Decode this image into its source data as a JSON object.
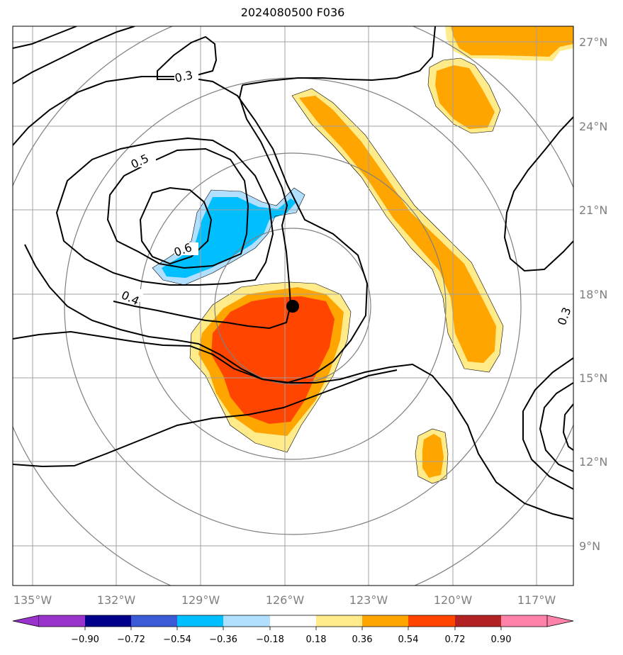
{
  "title": "2024080500 F036",
  "chart_data": {
    "type": "map",
    "lon_ticks": [
      "135°W",
      "132°W",
      "129°W",
      "126°W",
      "123°W",
      "120°W",
      "117°W"
    ],
    "lat_ticks": [
      "27°N",
      "24°N",
      "21°N",
      "18°N",
      "15°N",
      "12°N",
      "9°N"
    ],
    "contour_labels": [
      "0.3",
      "0.5",
      "0.6",
      "0.4",
      "0.3"
    ],
    "center_marker": {
      "lon": -125.8,
      "lat": 17.5
    },
    "colorbar": {
      "ticks": [
        "−0.90",
        "−0.72",
        "−0.54",
        "−0.36",
        "−0.18",
        "0.18",
        "0.36",
        "0.54",
        "0.72",
        "0.90"
      ],
      "colors": [
        "#9933cc",
        "#00008b",
        "#3b5bd6",
        "#00bfff",
        "#b0dfff",
        "#ffffff",
        "#ffeb8a",
        "#ffa500",
        "#ff4500",
        "#b22222",
        "#ff82ab"
      ]
    }
  }
}
